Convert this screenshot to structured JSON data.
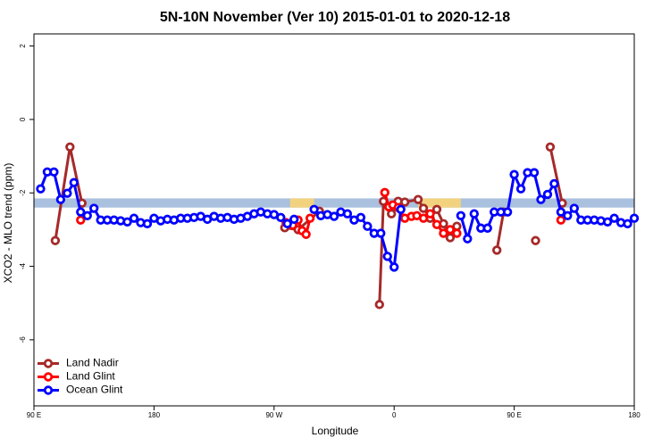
{
  "chart_data": {
    "type": "line",
    "title": "5N-10N November (Ver 10)   2015-01-01 to 2020-12-18",
    "xlabel": "Longitude",
    "ylabel": "XCO2 - MLO trend (ppm)",
    "xlim": [
      90,
      540
    ],
    "ylim": [
      -7.8,
      2.33
    ],
    "xticks": [
      {
        "value": 90,
        "label": "90 E"
      },
      180,
      {
        "value": 270,
        "label": "90 W"
      },
      {
        "value": 360,
        "label": "0"
      },
      {
        "value": 450,
        "label": "90 E"
      },
      {
        "value": 540,
        "label": "180"
      }
    ],
    "yticks": [
      -6,
      -4,
      -2,
      0,
      2
    ],
    "band": {
      "range": [
        -2.4,
        -2.15
      ],
      "color": "#a9c0de",
      "highlight_color": "#f2d27e",
      "highlights": [
        [
          282,
          300
        ],
        [
          378,
          410
        ]
      ]
    },
    "legend": "bottom-left",
    "series": [
      {
        "name": "Land Nadir",
        "color": "#a52a2a",
        "x": [
          106,
          117,
          126,
          200,
          278,
          288,
          304,
          330,
          349,
          352,
          358,
          363,
          368,
          378,
          382,
          387,
          392,
          397,
          402,
          407,
          420,
          437,
          442,
          455,
          466,
          470,
          477,
          486
        ],
        "values": [
          -3.3,
          -0.75,
          -2.28,
          null,
          -2.95,
          -3.0,
          -2.5,
          null,
          -5.04,
          -2.23,
          -2.57,
          -2.23,
          -2.25,
          -2.18,
          -2.42,
          -2.69,
          -2.45,
          -2.84,
          -3.22,
          -2.91,
          null,
          -3.56,
          -2.52,
          null,
          -3.3,
          null,
          -0.75,
          -2.28
        ]
      },
      {
        "name": "Land Glint",
        "color": "#ff0000",
        "x": [
          125,
          200,
          279,
          284,
          288,
          291,
          294,
          297,
          320,
          353,
          356,
          359,
          363,
          368,
          373,
          377,
          382,
          387,
          392,
          397,
          402,
          407,
          450,
          485
        ],
        "values": [
          -2.74,
          null,
          -2.81,
          -2.88,
          -2.74,
          -3.03,
          -3.13,
          -2.69,
          null,
          -1.99,
          -2.38,
          -2.33,
          -2.4,
          -2.69,
          -2.64,
          -2.62,
          -2.69,
          -2.57,
          -2.86,
          -3.1,
          -3.0,
          -3.1,
          null,
          -2.74
        ]
      },
      {
        "name": "Ocean Glint",
        "color": "#0000ff",
        "x": [
          95,
          100,
          105,
          110,
          115,
          120,
          125,
          130,
          135,
          140,
          145,
          150,
          155,
          160,
          165,
          170,
          175,
          180,
          185,
          190,
          195,
          200,
          205,
          210,
          215,
          220,
          225,
          230,
          235,
          240,
          245,
          250,
          255,
          260,
          265,
          270,
          275,
          280,
          285,
          290,
          295,
          300,
          305,
          310,
          315,
          320,
          325,
          330,
          335,
          340,
          345,
          350,
          355,
          360,
          365,
          370,
          375,
          380,
          385,
          390,
          395,
          400,
          405,
          410,
          415,
          420,
          425,
          430,
          435,
          440,
          445,
          450,
          455,
          460,
          465,
          470,
          475,
          480,
          485,
          490,
          495,
          500,
          505,
          510,
          515,
          520,
          525,
          530,
          535,
          540
        ],
        "values": [
          -1.89,
          -1.43,
          -1.43,
          -2.18,
          -2.01,
          -1.72,
          -2.52,
          -2.62,
          -2.42,
          -2.74,
          -2.74,
          -2.74,
          -2.76,
          -2.79,
          -2.69,
          -2.81,
          -2.84,
          -2.69,
          -2.76,
          -2.72,
          -2.74,
          -2.69,
          -2.69,
          -2.67,
          -2.64,
          -2.72,
          -2.64,
          -2.69,
          -2.67,
          -2.72,
          -2.69,
          -2.64,
          -2.57,
          -2.52,
          -2.57,
          -2.59,
          -2.67,
          -2.84,
          -2.72,
          null,
          null,
          -2.45,
          -2.62,
          -2.59,
          -2.64,
          -2.52,
          -2.57,
          -2.74,
          -2.67,
          -2.91,
          -3.1,
          -3.1,
          -3.73,
          -4.02,
          -2.45,
          null,
          null,
          null,
          null,
          null,
          null,
          null,
          null,
          -2.62,
          -3.25,
          -2.57,
          -2.96,
          -2.96,
          -2.52,
          -2.52,
          -2.52,
          -1.5,
          -1.89,
          -1.45,
          -1.45,
          -2.18,
          -2.04,
          -1.75,
          -2.52,
          -2.62,
          -2.42,
          -2.74,
          -2.74,
          -2.74,
          -2.76,
          -2.79,
          -2.69,
          -2.81,
          -2.84,
          -2.69
        ]
      }
    ]
  }
}
